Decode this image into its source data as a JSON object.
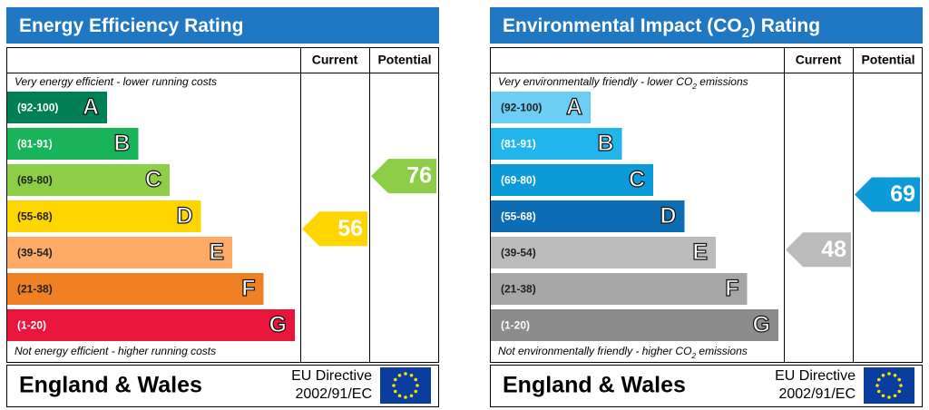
{
  "panels": [
    {
      "title": [
        "Energy Efficiency Rating"
      ],
      "columns": [
        "Current",
        "Potential"
      ],
      "top_note": [
        "Very energy efficient - lower running costs"
      ],
      "bands": [
        {
          "range": "(92-100)",
          "letter": "A",
          "color": "#008054"
        },
        {
          "range": "(81-91)",
          "letter": "B",
          "color": "#19b459"
        },
        {
          "range": "(69-80)",
          "letter": "C",
          "color": "#8dce46"
        },
        {
          "range": "(55-68)",
          "letter": "D",
          "color": "#ffd500"
        },
        {
          "range": "(39-54)",
          "letter": "E",
          "color": "#fcaa65"
        },
        {
          "range": "(21-38)",
          "letter": "F",
          "color": "#ef8023"
        },
        {
          "range": "(1-20)",
          "letter": "G",
          "color": "#e9153b"
        }
      ],
      "bottom_note": [
        "Not energy efficient - higher running costs"
      ],
      "current": 56,
      "potential": 76,
      "footer": {
        "region": "England & Wales",
        "directive": [
          "EU Directive",
          "2002/91/EC"
        ]
      }
    },
    {
      "title": [
        "Environmental Impact (CO",
        "2",
        ") Rating"
      ],
      "columns": [
        "Current",
        "Potential"
      ],
      "top_note": [
        "Very environmentally friendly - lower CO",
        "2",
        " emissions"
      ],
      "bands": [
        {
          "range": "(92-100)",
          "letter": "A",
          "color": "#6ccef5"
        },
        {
          "range": "(81-91)",
          "letter": "B",
          "color": "#22b5eb"
        },
        {
          "range": "(69-80)",
          "letter": "C",
          "color": "#0d9ad8"
        },
        {
          "range": "(55-68)",
          "letter": "D",
          "color": "#0c6db5"
        },
        {
          "range": "(39-54)",
          "letter": "E",
          "color": "#bbbbbb"
        },
        {
          "range": "(21-38)",
          "letter": "F",
          "color": "#a6a6a6"
        },
        {
          "range": "(1-20)",
          "letter": "G",
          "color": "#8c8c8c"
        }
      ],
      "bottom_note": [
        "Not environmentally friendly - higher CO",
        "2",
        " emissions"
      ],
      "current": 48,
      "potential": 69,
      "footer": {
        "region": "England & Wales",
        "directive": [
          "EU Directive",
          "2002/91/EC"
        ]
      }
    }
  ]
}
